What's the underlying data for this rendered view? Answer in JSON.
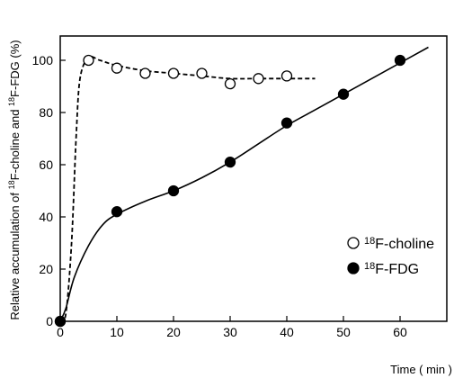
{
  "chart_data": {
    "type": "scatter",
    "xlabel": "Time ( min )",
    "ylabel_parts": [
      "Relative accumulation of ",
      "18",
      "F-choline and ",
      "18",
      "F-FDG (%)"
    ],
    "xlim": [
      0,
      65
    ],
    "ylim": [
      0,
      110
    ],
    "xticks": [
      0,
      10,
      20,
      30,
      40,
      50,
      60
    ],
    "yticks": [
      0,
      20,
      40,
      60,
      80,
      100
    ],
    "grid": false,
    "legend_position": "bottom-right",
    "series": [
      {
        "name_sup": "18",
        "name_rest": "F-choline",
        "marker": "open-circle",
        "line_style": "dashed",
        "points": [
          [
            0,
            0
          ],
          [
            5,
            100
          ],
          [
            10,
            97
          ],
          [
            15,
            95
          ],
          [
            20,
            95
          ],
          [
            25,
            95
          ],
          [
            30,
            91
          ],
          [
            35,
            93
          ],
          [
            40,
            94
          ]
        ],
        "curve": [
          [
            0,
            0
          ],
          [
            1,
            3
          ],
          [
            2,
            30
          ],
          [
            2.8,
            70
          ],
          [
            3.5,
            93
          ],
          [
            5,
            101
          ],
          [
            7,
            100
          ],
          [
            10,
            98
          ],
          [
            15,
            96
          ],
          [
            20,
            95
          ],
          [
            25,
            94
          ],
          [
            30,
            93
          ],
          [
            35,
            93
          ],
          [
            40,
            93
          ],
          [
            45,
            93
          ]
        ]
      },
      {
        "name_sup": "18",
        "name_rest": "F-FDG",
        "marker": "filled-circle",
        "line_style": "solid",
        "points": [
          [
            0,
            0
          ],
          [
            10,
            42
          ],
          [
            20,
            50
          ],
          [
            30,
            61
          ],
          [
            40,
            76
          ],
          [
            50,
            87
          ],
          [
            60,
            100
          ]
        ],
        "curve": [
          [
            0,
            0
          ],
          [
            1,
            5
          ],
          [
            2.5,
            17
          ],
          [
            5,
            29
          ],
          [
            7.5,
            37
          ],
          [
            10,
            41
          ],
          [
            15,
            46
          ],
          [
            20,
            50
          ],
          [
            25,
            55
          ],
          [
            30,
            61
          ],
          [
            35,
            68
          ],
          [
            40,
            75
          ],
          [
            45,
            81
          ],
          [
            50,
            87
          ],
          [
            55,
            93
          ],
          [
            60,
            99
          ],
          [
            65,
            105
          ]
        ]
      }
    ]
  }
}
